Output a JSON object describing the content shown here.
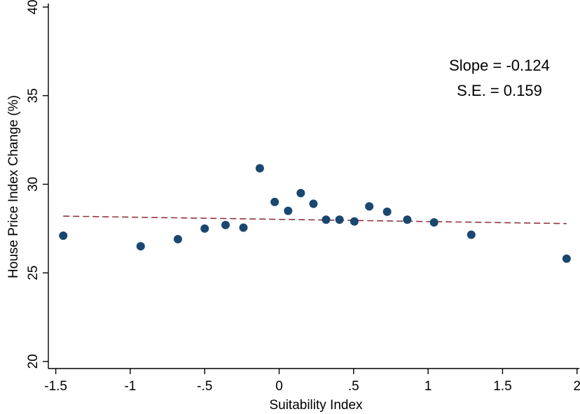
{
  "chart_data": {
    "type": "scatter",
    "xlabel": "Suitability Index",
    "ylabel": "House Price Index Change (%)",
    "xlim": [
      -1.55,
      2.02
    ],
    "ylim": [
      19.6,
      40.2
    ],
    "x_ticks": [
      -1.5,
      -1,
      -0.5,
      0,
      0.5,
      1,
      1.5,
      2
    ],
    "x_tick_labels": [
      "-1.5",
      "-1",
      "-.5",
      "0",
      ".5",
      "1",
      "1.5",
      "2"
    ],
    "y_ticks": [
      20,
      25,
      30,
      35,
      40
    ],
    "y_tick_labels": [
      "20",
      "25",
      "30",
      "35",
      "40"
    ],
    "grid": false,
    "marker_color": "#1a476f",
    "fit_line_color": "#90353b",
    "points": [
      {
        "x": -1.45,
        "y": 27.1
      },
      {
        "x": -0.93,
        "y": 26.5
      },
      {
        "x": -0.68,
        "y": 26.9
      },
      {
        "x": -0.5,
        "y": 27.5
      },
      {
        "x": -0.36,
        "y": 27.7
      },
      {
        "x": -0.24,
        "y": 27.55
      },
      {
        "x": -0.13,
        "y": 30.9
      },
      {
        "x": -0.03,
        "y": 29.0
      },
      {
        "x": 0.06,
        "y": 28.5
      },
      {
        "x": 0.145,
        "y": 29.5
      },
      {
        "x": 0.23,
        "y": 28.9
      },
      {
        "x": 0.315,
        "y": 28.0
      },
      {
        "x": 0.405,
        "y": 28.0
      },
      {
        "x": 0.505,
        "y": 27.9
      },
      {
        "x": 0.605,
        "y": 28.75
      },
      {
        "x": 0.725,
        "y": 28.45
      },
      {
        "x": 0.86,
        "y": 28.0
      },
      {
        "x": 1.04,
        "y": 27.85
      },
      {
        "x": 1.29,
        "y": 27.15
      },
      {
        "x": 1.93,
        "y": 25.8
      }
    ],
    "fit_line": {
      "x": [
        -1.45,
        1.93
      ],
      "y": [
        28.2,
        27.78
      ]
    },
    "annotations": [
      "Slope = -0.124",
      "S.E. = 0.159"
    ]
  }
}
